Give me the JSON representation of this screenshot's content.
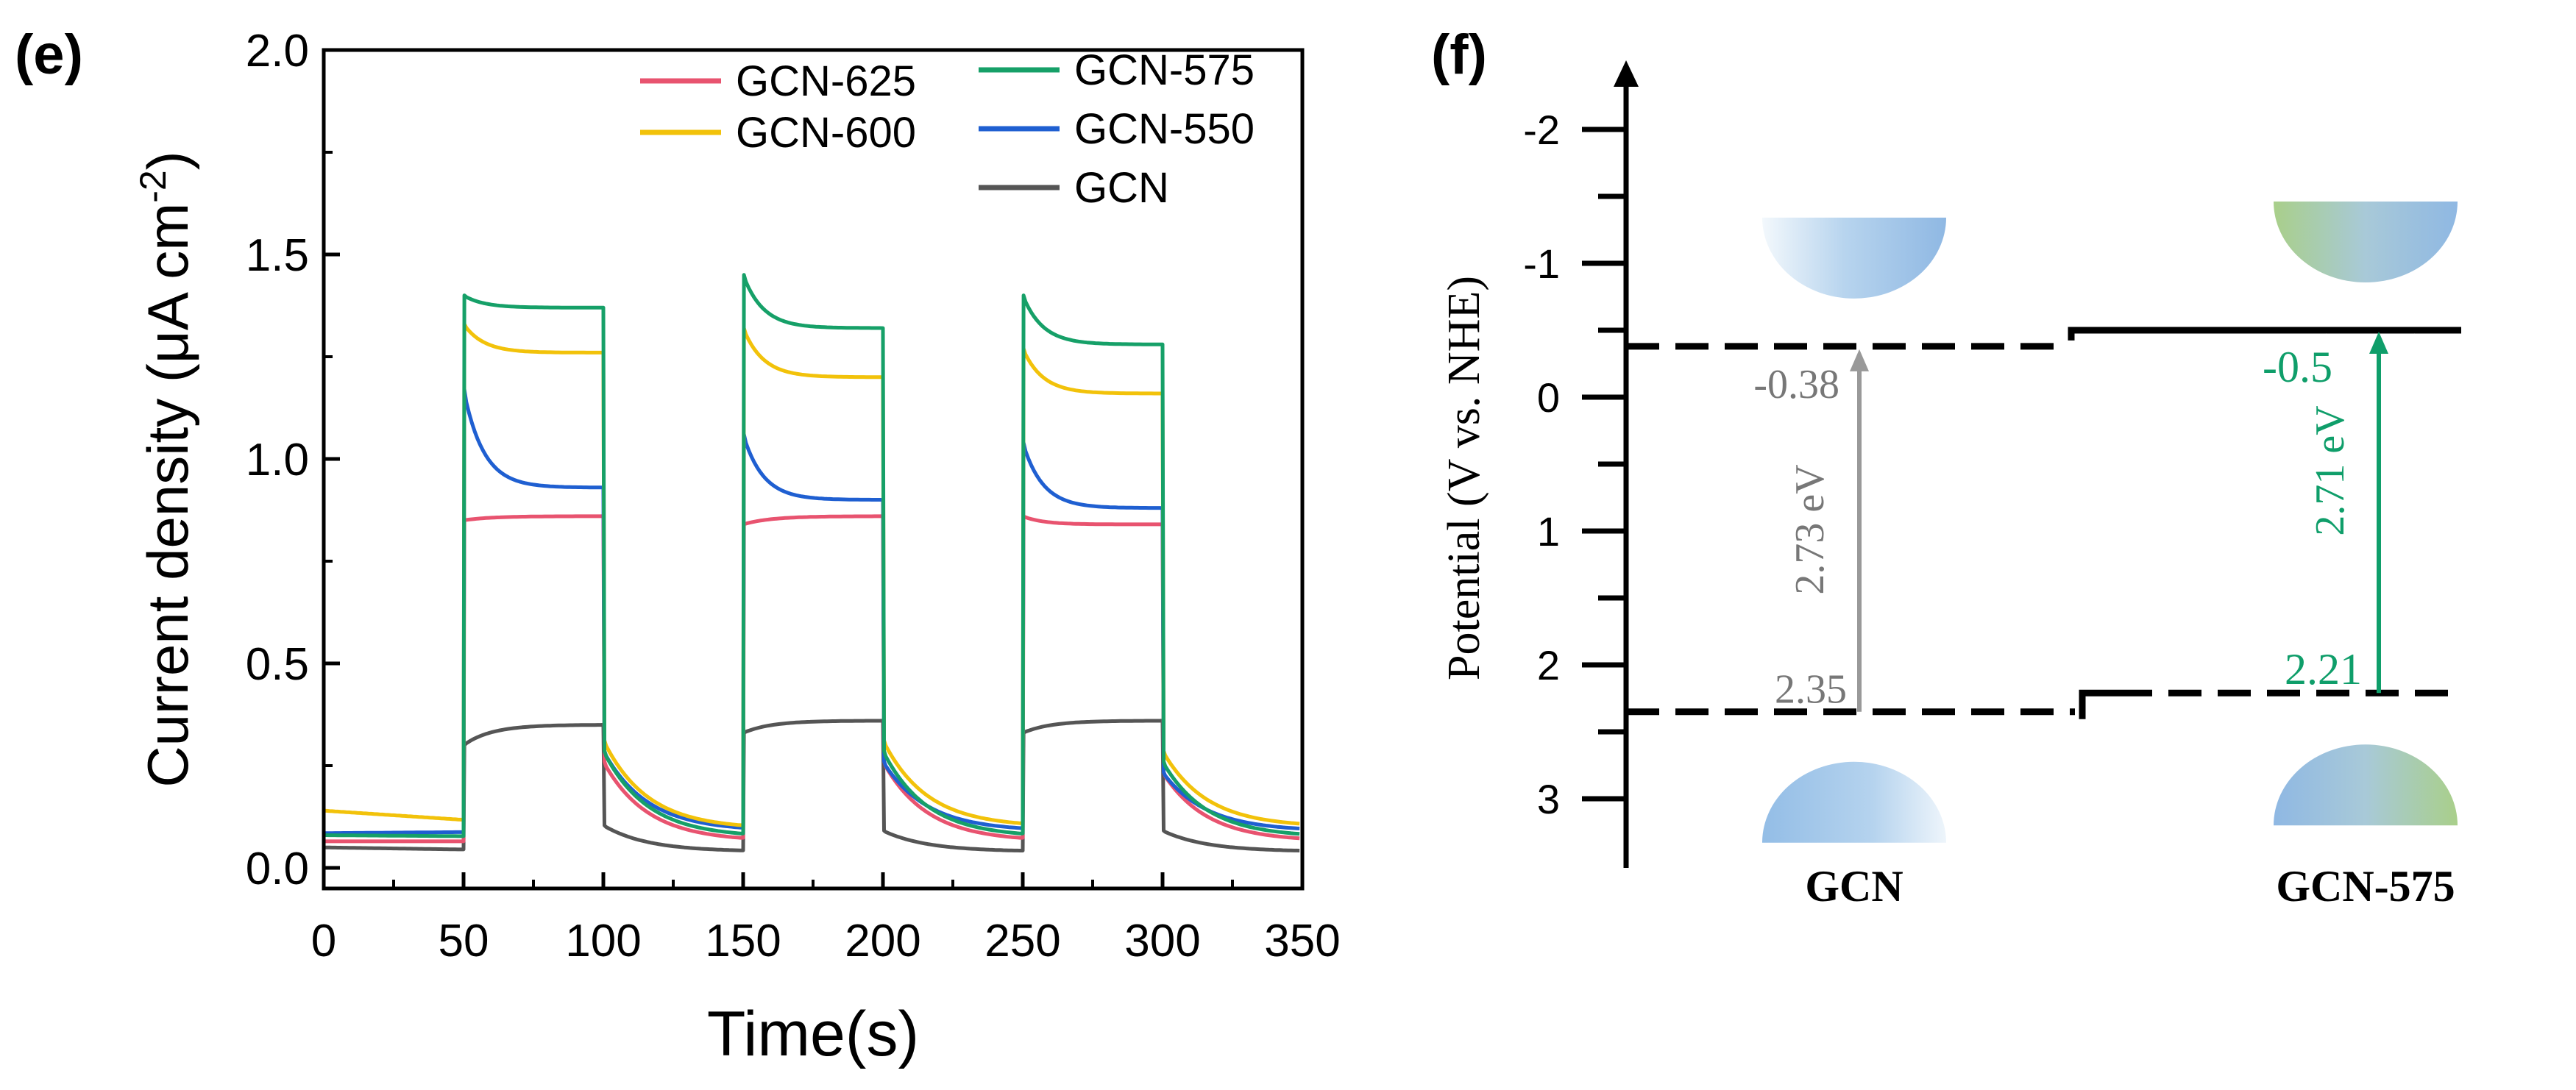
{
  "chart_data": [
    {
      "panel_label": "(e)",
      "type": "line",
      "title": "",
      "xlabel": "Time(s)",
      "ylabel": "Current density (μA cm⁻²)",
      "xlim": [
        0,
        350
      ],
      "ylim": [
        0,
        2.0
      ],
      "xticks": [
        "0",
        "50",
        "100",
        "150",
        "200",
        "250",
        "300",
        "350"
      ],
      "yticks": [
        "0.0",
        "0.5",
        "1.0",
        "1.5",
        "2.0"
      ],
      "legend_placement": "top-right",
      "light_on_intervals": [
        [
          50,
          100
        ],
        [
          150,
          200
        ],
        [
          250,
          300
        ]
      ],
      "series": [
        {
          "name": "GCN-625",
          "color": "#e8536f",
          "dark": [
            0.065,
            0.065,
            0.065,
            0.065
          ],
          "peaks": [
            0.85,
            0.84,
            0.86
          ],
          "plateaus": [
            0.86,
            0.86,
            0.84
          ],
          "decay_to": [
            0.1,
            0.1,
            0.09
          ]
        },
        {
          "name": "GCN-575",
          "color": "#16a068",
          "dark": [
            0.08,
            0.075,
            0.075,
            0.075
          ],
          "peaks": [
            1.4,
            1.45,
            1.4
          ],
          "plateaus": [
            1.37,
            1.32,
            1.28
          ],
          "decay_to": [
            0.11,
            0.11,
            0.1
          ]
        },
        {
          "name": "GCN-600",
          "color": "#f2c20a",
          "dark": [
            0.14,
            0.095,
            0.1,
            0.1
          ],
          "peaks": [
            1.33,
            1.32,
            1.27
          ],
          "plateaus": [
            1.26,
            1.2,
            1.16
          ],
          "decay_to": [
            0.12,
            0.12,
            0.11
          ]
        },
        {
          "name": "GCN-550",
          "color": "#1f5fd1",
          "dark": [
            0.085,
            0.09,
            0.09,
            0.09
          ],
          "peaks": [
            1.17,
            1.06,
            1.04
          ],
          "plateaus": [
            0.93,
            0.9,
            0.88
          ],
          "decay_to": [
            0.11,
            0.1,
            0.09
          ]
        },
        {
          "name": "GCN",
          "color": "#555555",
          "dark": [
            0.05,
            0.04,
            0.04,
            0.04
          ],
          "peaks": [
            0.3,
            0.33,
            0.33
          ],
          "plateaus": [
            0.35,
            0.36,
            0.36
          ],
          "decay_to": [
            0.04,
            0.035,
            0.035
          ]
        }
      ]
    },
    {
      "panel_label": "(f)",
      "type": "band-diagram",
      "ylabel": "Potential (V vs. NHE)",
      "ylim": [
        3.3,
        -2.5
      ],
      "yticks": [
        "-2",
        "-1",
        "0",
        "1",
        "2",
        "3"
      ],
      "ytick_values": [
        -2,
        -1,
        0,
        1,
        2,
        3
      ],
      "materials": [
        {
          "name": "GCN",
          "cb": -0.38,
          "vb": 2.35,
          "cb_label": "-0.38",
          "vb_label": "2.35",
          "gap_label": "2.73 eV",
          "color": "#999999"
        },
        {
          "name": "GCN-575",
          "cb": -0.5,
          "vb": 2.21,
          "cb_label": "-0.5",
          "vb_label": "2.21",
          "gap_label": "2.71 eV",
          "color": "#0f9e6a"
        }
      ]
    }
  ]
}
